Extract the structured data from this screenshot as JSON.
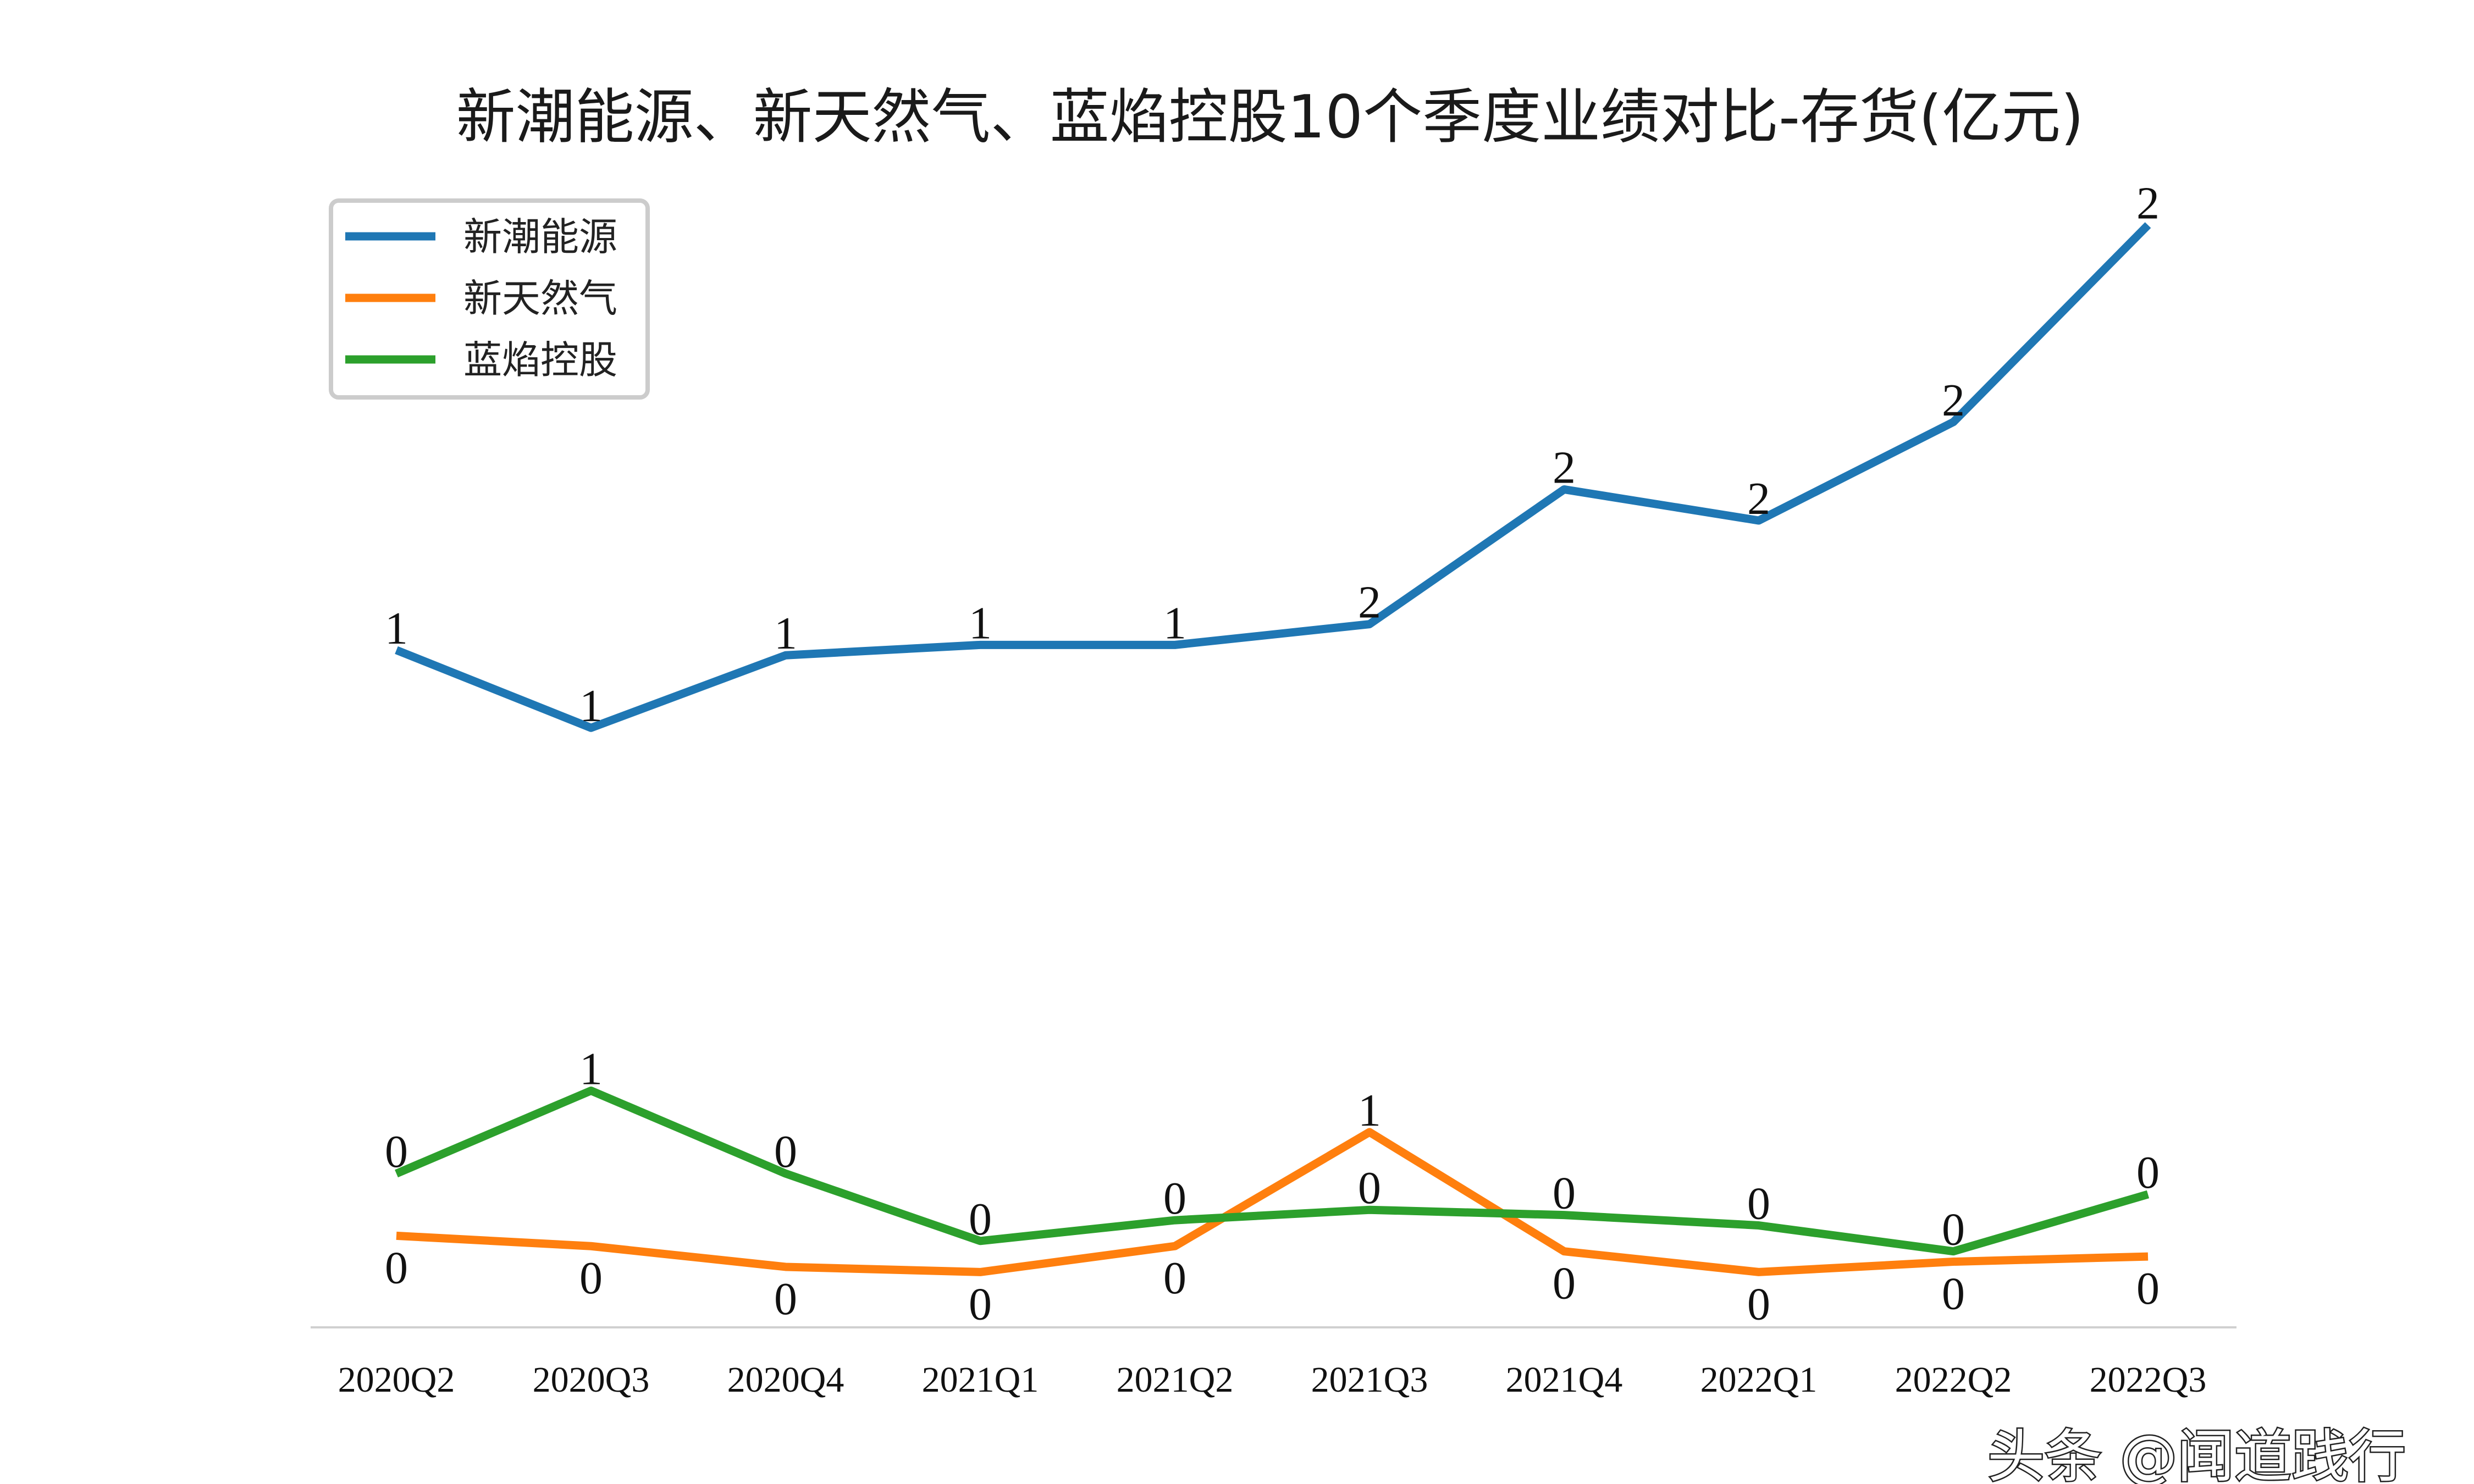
{
  "chart_data": {
    "type": "line",
    "title": "新潮能源、新天然气、蓝焰控股10个季度业绩对比-存货(亿元)",
    "xlabel": "",
    "ylabel": "",
    "categories": [
      "2020Q2",
      "2020Q3",
      "2020Q4",
      "2021Q1",
      "2021Q2",
      "2021Q3",
      "2021Q4",
      "2022Q1",
      "2022Q2",
      "2022Q3"
    ],
    "series": [
      {
        "name": "新潮能源",
        "color": "#1f77b4",
        "values": [
          1.47,
          1.32,
          1.46,
          1.48,
          1.48,
          1.52,
          1.78,
          1.72,
          1.91,
          2.29
        ],
        "labels": [
          "1",
          "1",
          "1",
          "1",
          "1",
          "2",
          "2",
          "2",
          "2",
          "2"
        ]
      },
      {
        "name": "新天然气",
        "color": "#ff7f0e",
        "values": [
          0.34,
          0.32,
          0.28,
          0.27,
          0.32,
          0.54,
          0.31,
          0.27,
          0.29,
          0.3
        ],
        "labels": [
          "0",
          "0",
          "0",
          "0",
          "0",
          "1",
          "0",
          "0",
          "0",
          "0"
        ]
      },
      {
        "name": "蓝焰控股",
        "color": "#2ca02c",
        "values": [
          0.46,
          0.62,
          0.46,
          0.33,
          0.37,
          0.39,
          0.38,
          0.36,
          0.31,
          0.42
        ],
        "labels": [
          "0",
          "1",
          "0",
          "0",
          "0",
          "0",
          "0",
          "0",
          "0",
          "0"
        ]
      }
    ],
    "legend_position": "top-left",
    "grid": false,
    "y_axis_visible": false
  },
  "watermark": "头条 @闻道践行"
}
